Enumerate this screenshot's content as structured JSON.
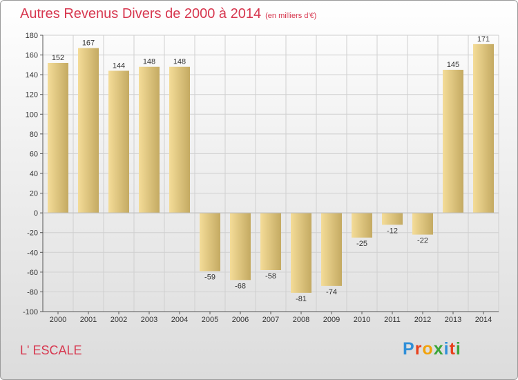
{
  "title": "Autres Revenus Divers de 2000 à 2014",
  "title_unit": "(en milliers d'€)",
  "commune": "L' ESCALE",
  "logo": {
    "letters": [
      {
        "ch": "P",
        "color": "#2f8fd8"
      },
      {
        "ch": "r",
        "color": "#e8401c"
      },
      {
        "ch": "o",
        "color": "#f2a20b"
      },
      {
        "ch": "x",
        "color": "#3aa53a"
      },
      {
        "ch": "i",
        "color": "#2f8fd8"
      },
      {
        "ch": "t",
        "color": "#e8401c"
      },
      {
        "ch": "i",
        "color": "#3aa53a"
      }
    ]
  },
  "colors": {
    "title": "#d7374f",
    "bar_light": "#f4dc98",
    "bar_dark": "#c4aa62",
    "gridline": "#cfcfcf",
    "axis": "#555555"
  },
  "chart_data": {
    "type": "bar",
    "categories": [
      "2000",
      "2001",
      "2002",
      "2003",
      "2004",
      "2005",
      "2006",
      "2007",
      "2008",
      "2009",
      "2010",
      "2011",
      "2012",
      "2013",
      "2014"
    ],
    "values": [
      152,
      167,
      144,
      148,
      148,
      -59,
      -68,
      -58,
      -81,
      -74,
      -25,
      -12,
      -22,
      145,
      171
    ],
    "ylim": [
      -100,
      180
    ],
    "yticks": [
      -100,
      -80,
      -60,
      -40,
      -20,
      0,
      20,
      40,
      60,
      80,
      100,
      120,
      140,
      160,
      180
    ],
    "grid": true
  }
}
